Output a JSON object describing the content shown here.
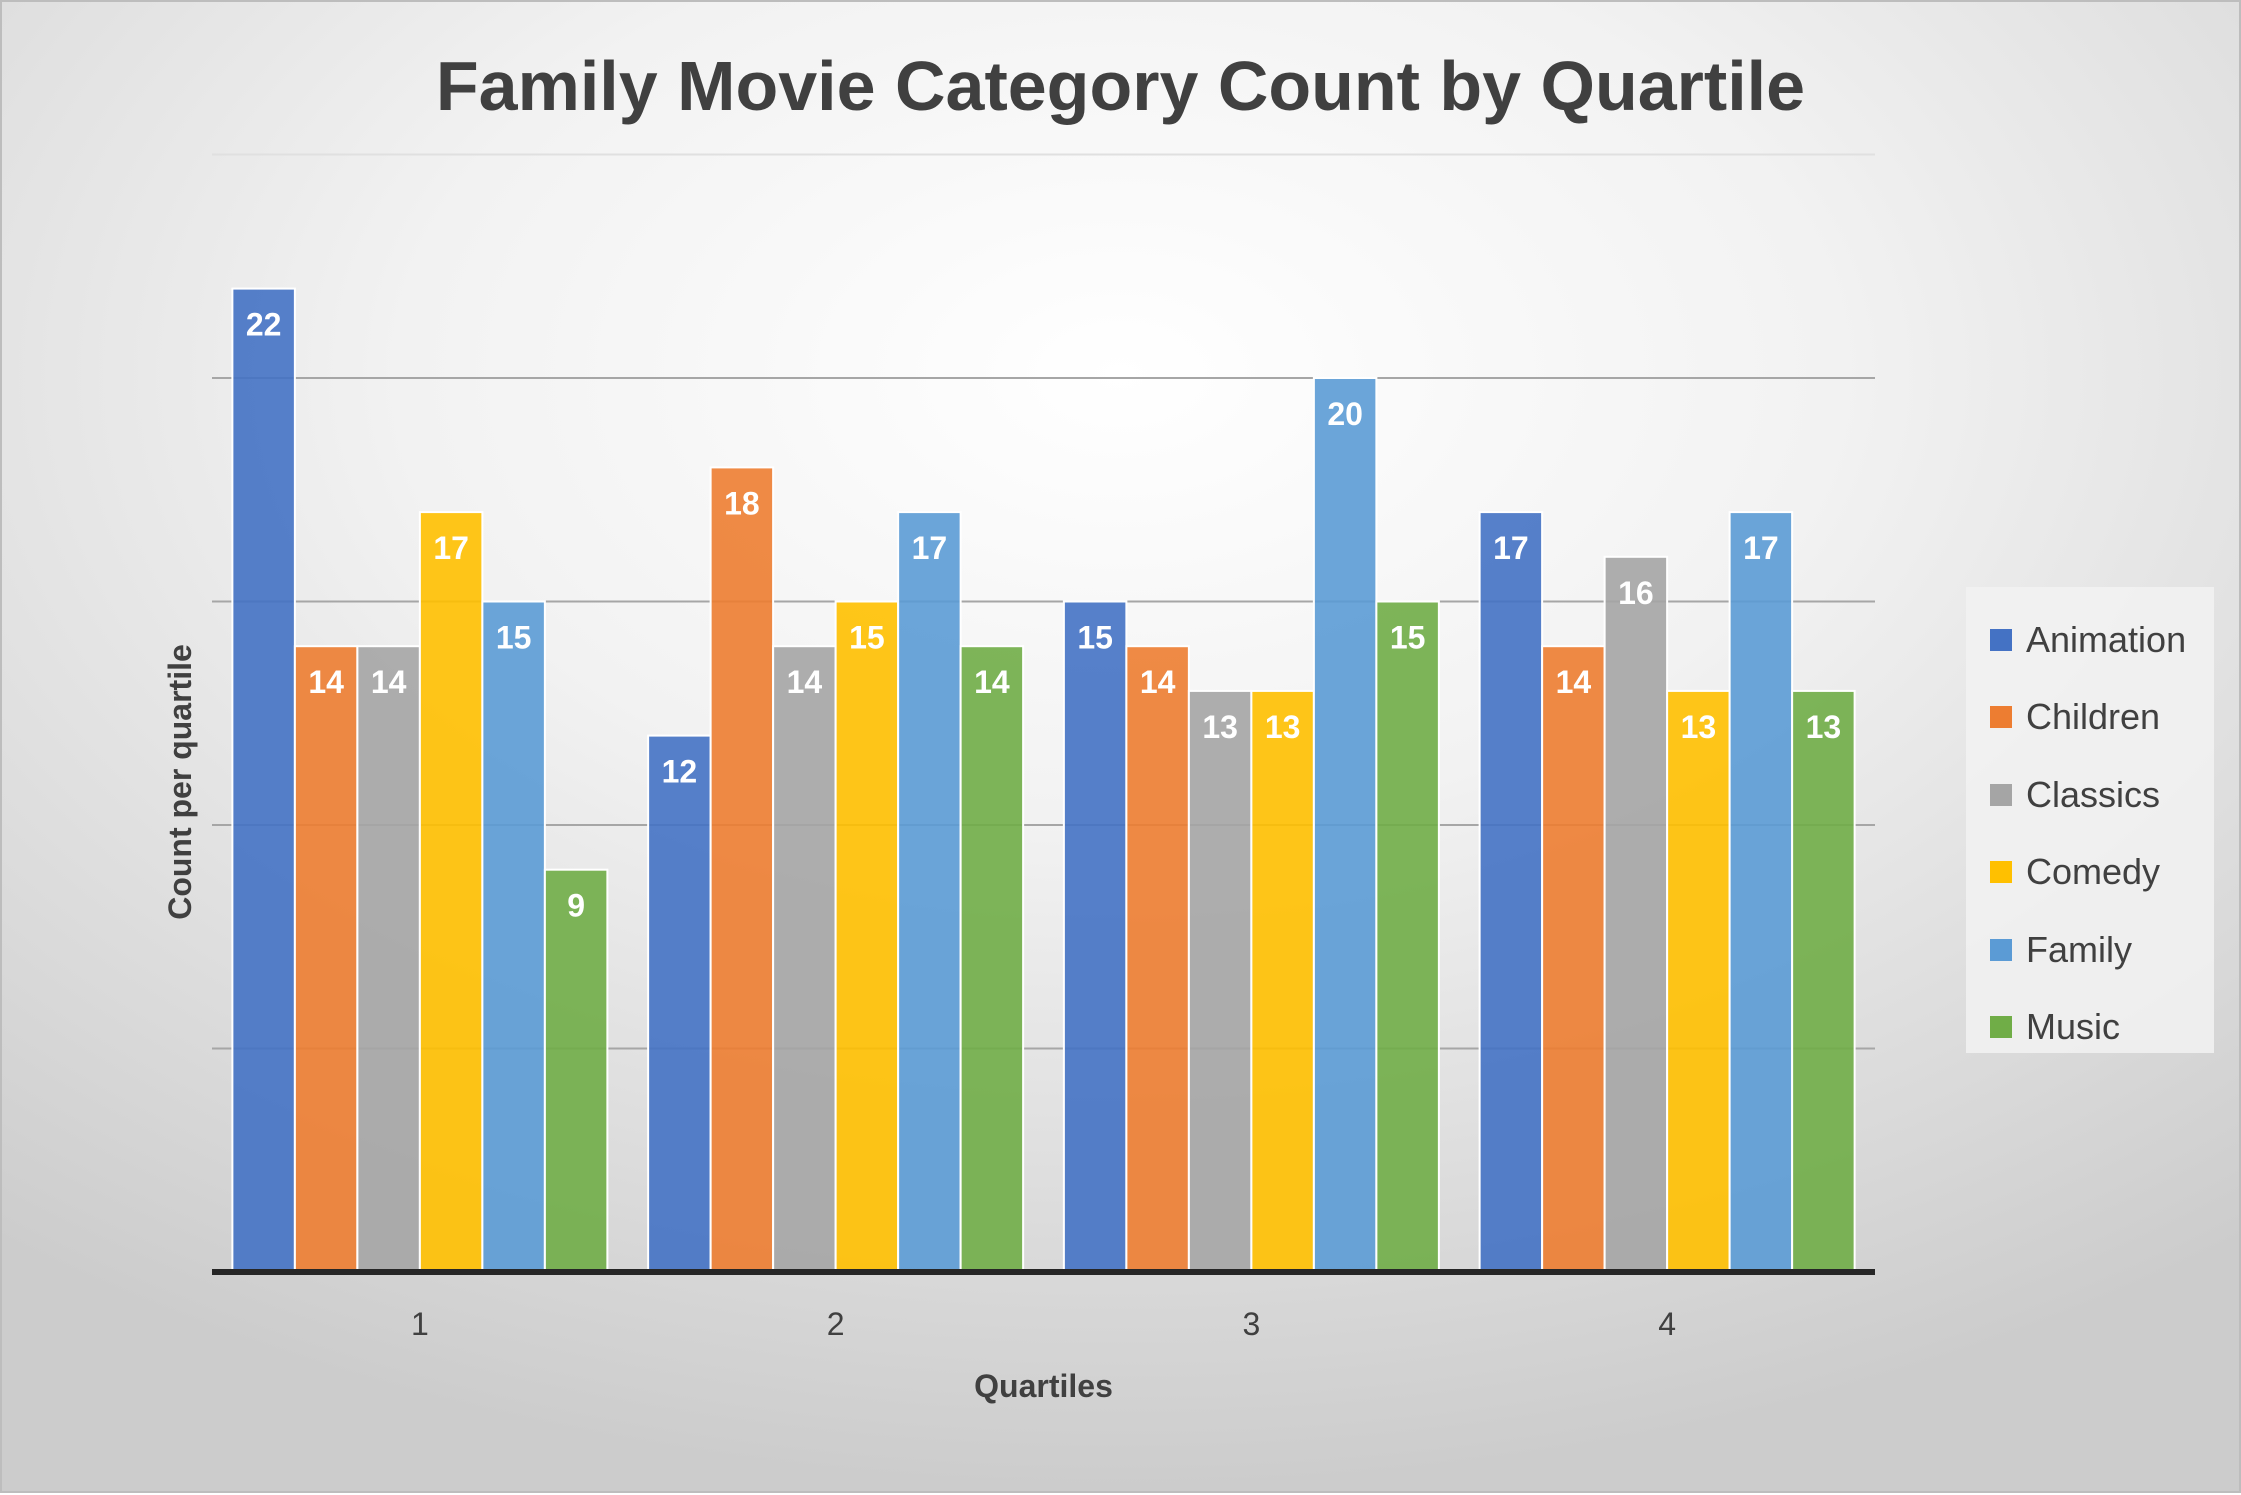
{
  "chart_data": {
    "type": "bar",
    "title": "Family Movie Category Count by Quartile",
    "xlabel": "Quartiles",
    "ylabel": "Count per quartile",
    "categories": [
      "1",
      "2",
      "3",
      "4"
    ],
    "ylim": [
      0,
      25
    ],
    "y_gridlines": [
      5,
      10,
      15,
      20,
      25
    ],
    "y_tick_labels_shown": false,
    "grid": true,
    "legend_position": "right",
    "data_labels": true,
    "series": [
      {
        "name": "Animation",
        "color": "#4472C4",
        "values": [
          22,
          12,
          15,
          17
        ]
      },
      {
        "name": "Children",
        "color": "#ED7D31",
        "values": [
          14,
          18,
          14,
          14
        ]
      },
      {
        "name": "Classics",
        "color": "#A5A5A5",
        "values": [
          14,
          14,
          13,
          16
        ]
      },
      {
        "name": "Comedy",
        "color": "#FFC000",
        "values": [
          17,
          15,
          13,
          13
        ]
      },
      {
        "name": "Family",
        "color": "#5B9BD5",
        "values": [
          15,
          17,
          20,
          17
        ]
      },
      {
        "name": "Music",
        "color": "#70AD47",
        "values": [
          9,
          14,
          15,
          13
        ]
      }
    ]
  }
}
